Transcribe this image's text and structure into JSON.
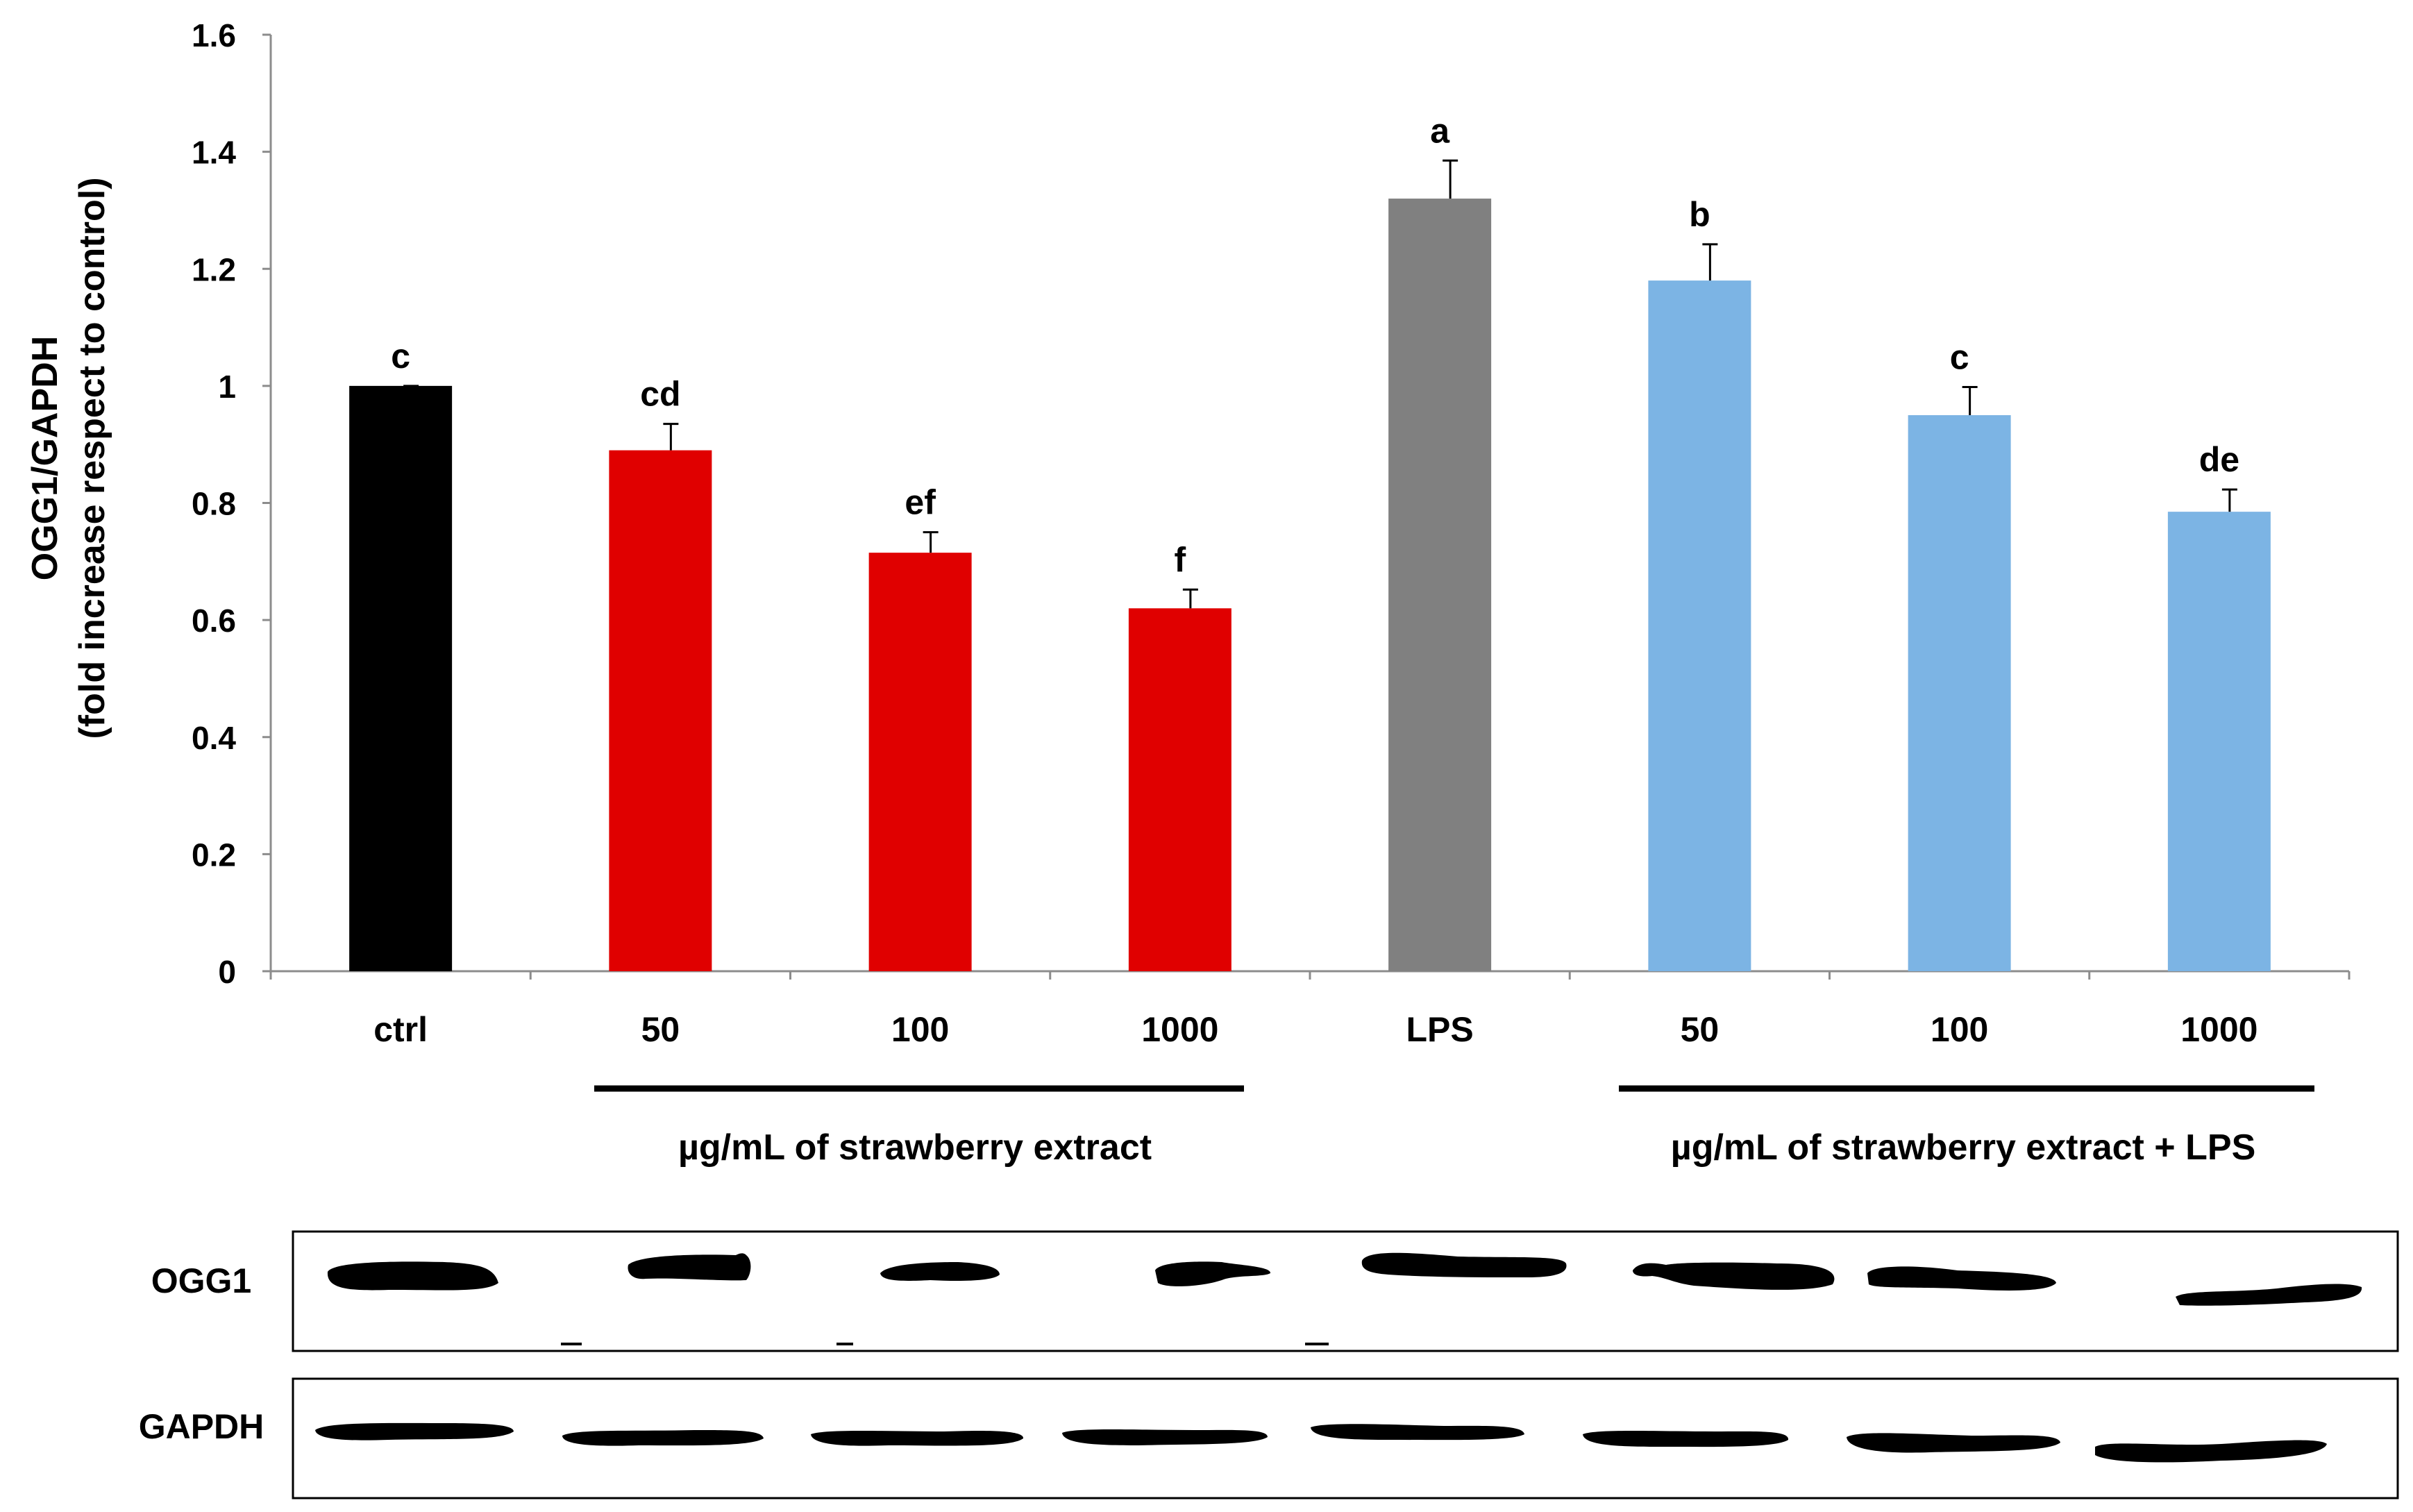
{
  "chart_data": {
    "type": "bar",
    "title": "",
    "xlabel": "",
    "ylabel_line1": "OGG1/GAPDH",
    "ylabel_line2": "(fold increase respect to control)",
    "ylim": [
      0,
      1.6
    ],
    "yticks": [
      "0",
      "0.2",
      "0.4",
      "0.6",
      "0.8",
      "1",
      "1.2",
      "1.4",
      "1.6"
    ],
    "ytick_values": [
      0,
      0.2,
      0.4,
      0.6,
      0.8,
      1.0,
      1.2,
      1.4,
      1.6
    ],
    "grid": false,
    "categories": [
      "ctrl",
      "50",
      "100",
      "1000",
      "LPS",
      "50",
      "100",
      "1000"
    ],
    "values": [
      1.0,
      0.89,
      0.715,
      0.62,
      1.32,
      1.18,
      0.95,
      0.785
    ],
    "errors": [
      0.0,
      0.045,
      0.035,
      0.032,
      0.065,
      0.062,
      0.048,
      0.038
    ],
    "significance_letters": [
      "c",
      "cd",
      "ef",
      "f",
      "a",
      "b",
      "c",
      "de"
    ],
    "colors": [
      "#000000",
      "#e00000",
      "#e00000",
      "#e00000",
      "#808080",
      "#7cb4e4",
      "#7cb4e4",
      "#7cb4e4"
    ],
    "groups": [
      {
        "label": "µg/mL of strawberry extract",
        "first": 1,
        "last": 3
      },
      {
        "label": "µg/mL of strawberry extract + LPS",
        "first": 5,
        "last": 7
      }
    ]
  },
  "blots": [
    {
      "label": "OGG1",
      "lanes": 8
    },
    {
      "label": "GAPDH",
      "lanes": 8
    }
  ]
}
